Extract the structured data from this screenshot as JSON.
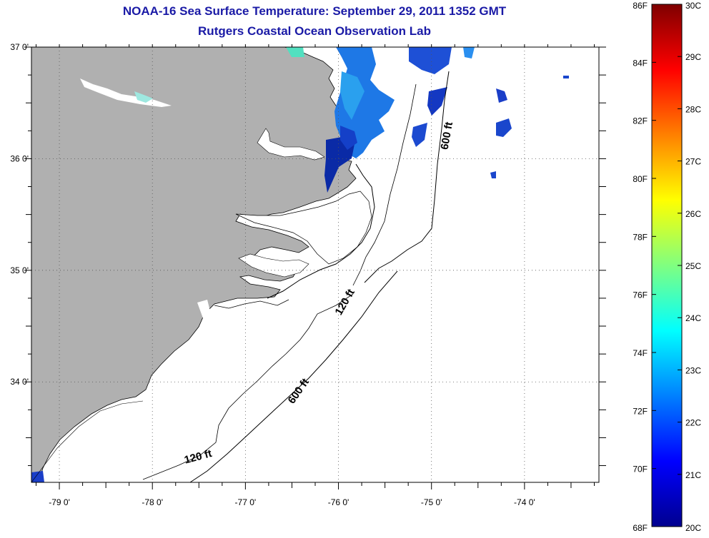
{
  "title": "NOAA-16 Sea Surface Temperature:  September 29, 2011 1352 GMT",
  "subtitle": "Rutgers Coastal Ocean Observation Lab",
  "map": {
    "lon_range": [
      -79.3,
      -73.2
    ],
    "lat_range": [
      33.1,
      37.0
    ],
    "lon_ticks": [
      {
        "value": -79,
        "label": "-79 0'"
      },
      {
        "value": -78,
        "label": "-78 0'"
      },
      {
        "value": -77,
        "label": "-77 0'"
      },
      {
        "value": -76,
        "label": "-76 0'"
      },
      {
        "value": -75,
        "label": "-75 0'"
      },
      {
        "value": -74,
        "label": "-74 0'"
      }
    ],
    "lat_ticks": [
      {
        "value": 37,
        "label": "37 0'"
      },
      {
        "value": 36,
        "label": "36 0'"
      },
      {
        "value": 35,
        "label": "35 0'"
      },
      {
        "value": 34,
        "label": "34 0'"
      }
    ],
    "land_color": "#b0b0b0",
    "ocean_color": "#ffffff",
    "contour_labels": [
      {
        "text": "600 ft",
        "lon": -74.8,
        "lat": 36.2
      },
      {
        "text": "120 ft",
        "lon": -75.9,
        "lat": 34.7
      },
      {
        "text": "600 ft",
        "lon": -76.4,
        "lat": 33.9
      },
      {
        "text": "120 ft",
        "lon": -77.5,
        "lat": 33.3
      }
    ]
  },
  "colorbar": {
    "fahrenheit_labels": [
      "86F",
      "84F",
      "82F",
      "80F",
      "78F",
      "76F",
      "74F",
      "72F",
      "70F",
      "68F"
    ],
    "celsius_labels": [
      "30C",
      "29C",
      "28C",
      "27C",
      "26C",
      "25C",
      "24C",
      "23C",
      "22C",
      "21C",
      "20C"
    ],
    "gradient_colors": [
      "#7f0000",
      "#ff0000",
      "#ff8000",
      "#ffff00",
      "#80ff80",
      "#00ffff",
      "#0080ff",
      "#0000ff",
      "#00008f"
    ]
  }
}
